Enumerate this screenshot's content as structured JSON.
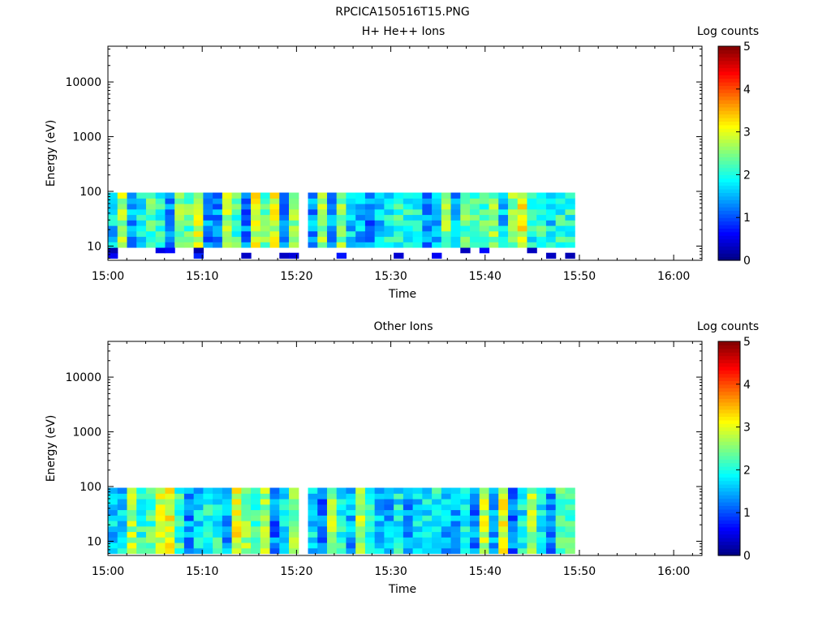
{
  "figure": {
    "title": "RPCICA150516T15.PNG"
  },
  "chart_data": [
    {
      "type": "heatmap",
      "title": "H+ He++ Ions",
      "xlabel": "Time",
      "ylabel": "Energy (eV)",
      "x_ticks": [
        "15:00",
        "15:10",
        "15:20",
        "15:30",
        "15:40",
        "15:50",
        "16:00"
      ],
      "x_range_min": [
        0,
        63
      ],
      "y_scale": "log",
      "y_ticks": [
        "10",
        "100",
        "1000",
        "10000"
      ],
      "y_range_eV": [
        5.5,
        45000
      ],
      "colorbar": {
        "label": "Log counts",
        "ticks": [
          "0",
          "1",
          "2",
          "3",
          "4",
          "5"
        ],
        "range": [
          0,
          5
        ],
        "colormap": "jet"
      },
      "data_extent": {
        "time_min": [
          0,
          49.5
        ],
        "energy_eV": [
          6,
          95
        ]
      },
      "seed": 7,
      "low_energy_sparse": true,
      "gap_minutes": [
        20.1,
        21.2
      ]
    },
    {
      "type": "heatmap",
      "title": "Other Ions",
      "xlabel": "Time",
      "ylabel": "Energy (eV)",
      "x_ticks": [
        "15:00",
        "15:10",
        "15:20",
        "15:30",
        "15:40",
        "15:50",
        "16:00"
      ],
      "x_range_min": [
        0,
        63
      ],
      "y_scale": "log",
      "y_ticks": [
        "10",
        "100",
        "1000",
        "10000"
      ],
      "y_range_eV": [
        5.5,
        45000
      ],
      "colorbar": {
        "label": "Log counts",
        "ticks": [
          "0",
          "1",
          "2",
          "3",
          "4",
          "5"
        ],
        "range": [
          0,
          5
        ],
        "colormap": "jet"
      },
      "data_extent": {
        "time_min": [
          0,
          49.5
        ],
        "energy_eV": [
          6,
          95
        ]
      },
      "seed": 13,
      "low_energy_sparse": false,
      "gap_minutes": [
        20.1,
        21.2
      ]
    }
  ]
}
